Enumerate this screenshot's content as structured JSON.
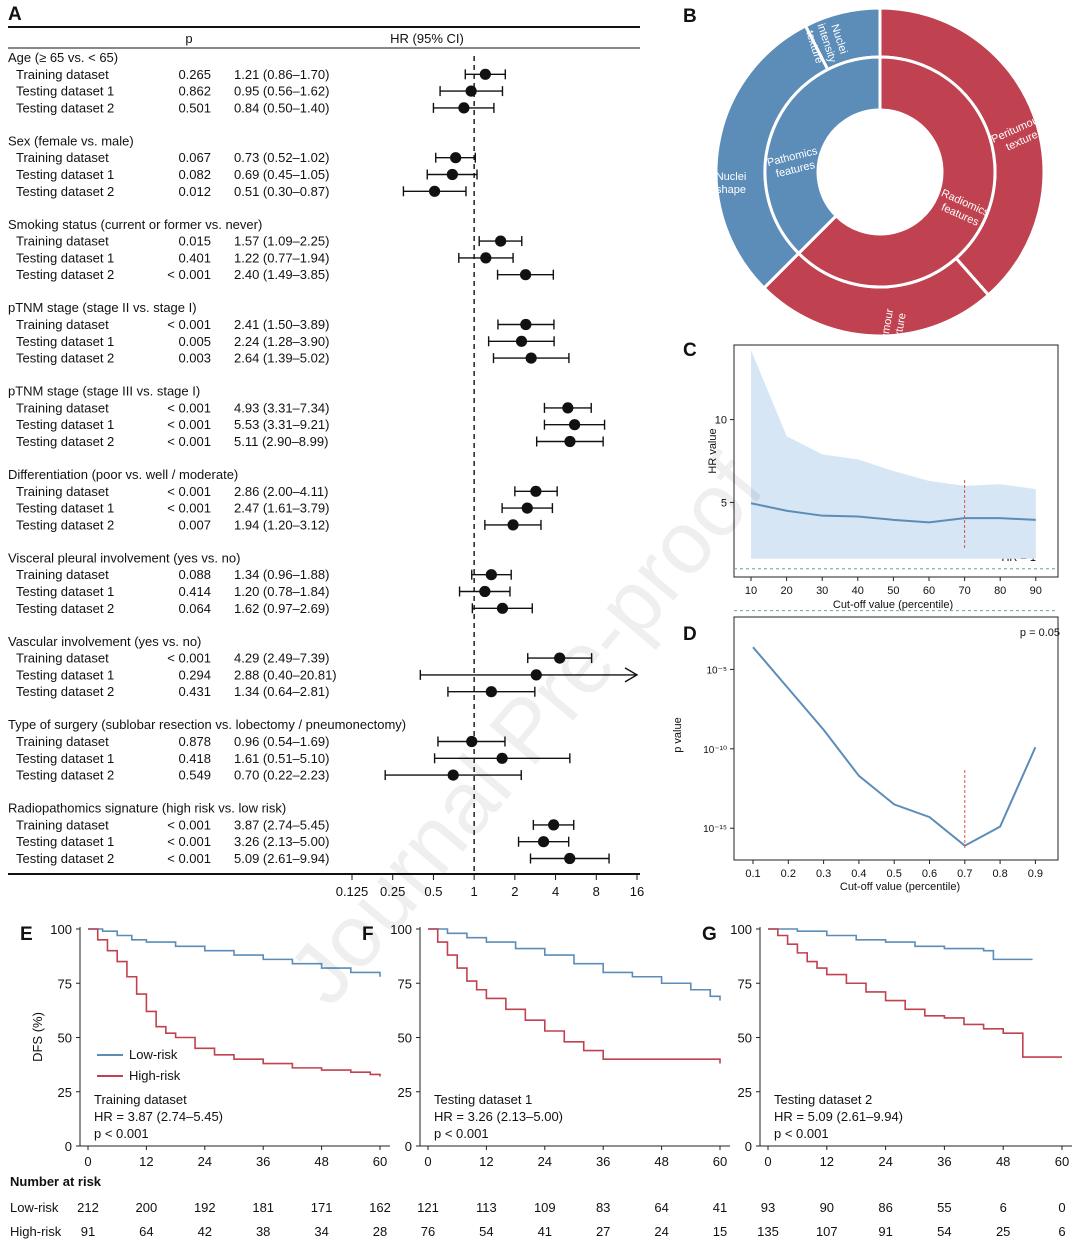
{
  "watermark": "Journal Pre-proof",
  "panel_labels": {
    "A": "A",
    "B": "B",
    "C": "C",
    "D": "D",
    "E": "E",
    "F": "F",
    "G": "G"
  },
  "colors": {
    "blue": "#5b8db8",
    "red": "#c0414f",
    "band": "#d6e6f5",
    "dashed_green": "#6aa88c",
    "dashed_red": "#d9534f"
  },
  "chart_data": [
    {
      "type": "forest",
      "panel": "A",
      "col_p": "p",
      "col_hr": "HR (95% CI)",
      "x_scale": "log2",
      "xlim": [
        0.125,
        16
      ],
      "xticks": [
        "0.125",
        "0.25",
        "0.5",
        "1",
        "2",
        "4",
        "8",
        "16"
      ],
      "reference_line": 1,
      "groups": [
        {
          "title": "Age (≥ 65 vs. < 65)",
          "rows": [
            {
              "label": "Training dataset",
              "p": "0.265",
              "hr_text": "1.21 (0.86–1.70)",
              "hr": 1.21,
              "lo": 0.86,
              "hi": 1.7
            },
            {
              "label": "Testing dataset 1",
              "p": "0.862",
              "hr_text": "0.95 (0.56–1.62)",
              "hr": 0.95,
              "lo": 0.56,
              "hi": 1.62
            },
            {
              "label": "Testing dataset 2",
              "p": "0.501",
              "hr_text": "0.84 (0.50–1.40)",
              "hr": 0.84,
              "lo": 0.5,
              "hi": 1.4
            }
          ]
        },
        {
          "title": "Sex (female vs. male)",
          "rows": [
            {
              "label": "Training dataset",
              "p": "0.067",
              "hr_text": "0.73 (0.52–1.02)",
              "hr": 0.73,
              "lo": 0.52,
              "hi": 1.02
            },
            {
              "label": "Testing dataset 1",
              "p": "0.082",
              "hr_text": "0.69 (0.45–1.05)",
              "hr": 0.69,
              "lo": 0.45,
              "hi": 1.05
            },
            {
              "label": "Testing dataset 2",
              "p": "0.012",
              "hr_text": "0.51 (0.30–0.87)",
              "hr": 0.51,
              "lo": 0.3,
              "hi": 0.87
            }
          ]
        },
        {
          "title": "Smoking status (current or former vs. never)",
          "rows": [
            {
              "label": "Training dataset",
              "p": "0.015",
              "hr_text": "1.57 (1.09–2.25)",
              "hr": 1.57,
              "lo": 1.09,
              "hi": 2.25
            },
            {
              "label": "Testing dataset 1",
              "p": "0.401",
              "hr_text": "1.22 (0.77–1.94)",
              "hr": 1.22,
              "lo": 0.77,
              "hi": 1.94
            },
            {
              "label": "Testing dataset 2",
              "p": "< 0.001",
              "hr_text": "2.40 (1.49–3.85)",
              "hr": 2.4,
              "lo": 1.49,
              "hi": 3.85
            }
          ]
        },
        {
          "title": "pTNM stage (stage II vs. stage I)",
          "rows": [
            {
              "label": "Training dataset",
              "p": "< 0.001",
              "hr_text": "2.41 (1.50–3.89)",
              "hr": 2.41,
              "lo": 1.5,
              "hi": 3.89
            },
            {
              "label": "Testing dataset 1",
              "p": "0.005",
              "hr_text": "2.24 (1.28–3.90)",
              "hr": 2.24,
              "lo": 1.28,
              "hi": 3.9
            },
            {
              "label": "Testing dataset 2",
              "p": "0.003",
              "hr_text": "2.64 (1.39–5.02)",
              "hr": 2.64,
              "lo": 1.39,
              "hi": 5.02
            }
          ]
        },
        {
          "title": "pTNM stage (stage III vs. stage I)",
          "rows": [
            {
              "label": "Training dataset",
              "p": "< 0.001",
              "hr_text": "4.93 (3.31–7.34)",
              "hr": 4.93,
              "lo": 3.31,
              "hi": 7.34
            },
            {
              "label": "Testing dataset 1",
              "p": "< 0.001",
              "hr_text": "5.53 (3.31–9.21)",
              "hr": 5.53,
              "lo": 3.31,
              "hi": 9.21
            },
            {
              "label": "Testing dataset 2",
              "p": "< 0.001",
              "hr_text": "5.11 (2.90–8.99)",
              "hr": 5.11,
              "lo": 2.9,
              "hi": 8.99
            }
          ]
        },
        {
          "title": "Differentiation (poor vs. well / moderate)",
          "rows": [
            {
              "label": "Training dataset",
              "p": "< 0.001",
              "hr_text": "2.86 (2.00–4.11)",
              "hr": 2.86,
              "lo": 2.0,
              "hi": 4.11
            },
            {
              "label": "Testing dataset 1",
              "p": "< 0.001",
              "hr_text": "2.47 (1.61–3.79)",
              "hr": 2.47,
              "lo": 1.61,
              "hi": 3.79
            },
            {
              "label": "Testing dataset 2",
              "p": "0.007",
              "hr_text": "1.94 (1.20–3.12)",
              "hr": 1.94,
              "lo": 1.2,
              "hi": 3.12
            }
          ]
        },
        {
          "title": "Visceral pleural involvement (yes vs. no)",
          "rows": [
            {
              "label": "Training dataset",
              "p": "0.088",
              "hr_text": "1.34 (0.96–1.88)",
              "hr": 1.34,
              "lo": 0.96,
              "hi": 1.88
            },
            {
              "label": "Testing dataset 1",
              "p": "0.414",
              "hr_text": "1.20 (0.78–1.84)",
              "hr": 1.2,
              "lo": 0.78,
              "hi": 1.84
            },
            {
              "label": "Testing dataset 2",
              "p": "0.064",
              "hr_text": "1.62 (0.97–2.69)",
              "hr": 1.62,
              "lo": 0.97,
              "hi": 2.69
            }
          ]
        },
        {
          "title": "Vascular involvement (yes vs. no)",
          "rows": [
            {
              "label": "Training dataset",
              "p": "< 0.001",
              "hr_text": "4.29 (2.49–7.39)",
              "hr": 4.29,
              "lo": 2.49,
              "hi": 7.39
            },
            {
              "label": "Testing dataset 1",
              "p": "0.294",
              "hr_text": "2.88 (0.40–20.81)",
              "hr": 2.88,
              "lo": 0.4,
              "hi": 20.81,
              "arrow": true
            },
            {
              "label": "Testing dataset 2",
              "p": "0.431",
              "hr_text": "1.34 (0.64–2.81)",
              "hr": 1.34,
              "lo": 0.64,
              "hi": 2.81
            }
          ]
        },
        {
          "title": "Type of surgery (sublobar resection vs. lobectomy / pneumonectomy)",
          "rows": [
            {
              "label": "Training dataset",
              "p": "0.878",
              "hr_text": "0.96 (0.54–1.69)",
              "hr": 0.96,
              "lo": 0.54,
              "hi": 1.69
            },
            {
              "label": "Testing dataset 1",
              "p": "0.418",
              "hr_text": "1.61 (0.51–5.10)",
              "hr": 1.61,
              "lo": 0.51,
              "hi": 5.1
            },
            {
              "label": "Testing dataset 2",
              "p": "0.549",
              "hr_text": "0.70 (0.22–2.23)",
              "hr": 0.7,
              "lo": 0.22,
              "hi": 2.23
            }
          ]
        },
        {
          "title": "Radiopathomics signature (high risk vs. low risk)",
          "rows": [
            {
              "label": "Training dataset",
              "p": "< 0.001",
              "hr_text": "3.87 (2.74–5.45)",
              "hr": 3.87,
              "lo": 2.74,
              "hi": 5.45
            },
            {
              "label": "Testing dataset 1",
              "p": "< 0.001",
              "hr_text": "3.26 (2.13–5.00)",
              "hr": 3.26,
              "lo": 2.13,
              "hi": 5.0
            },
            {
              "label": "Testing dataset 2",
              "p": "< 0.001",
              "hr_text": "5.09 (2.61–9.94)",
              "hr": 5.09,
              "lo": 2.61,
              "hi": 9.94
            }
          ]
        }
      ]
    },
    {
      "type": "pie",
      "panel": "B",
      "inner": [
        {
          "label": "Pathomics features",
          "value": 0.375,
          "color": "#5b8db8"
        },
        {
          "label": "Radiomics features",
          "value": 0.625,
          "color": "#c0414f"
        }
      ],
      "outer": [
        {
          "label": "Peritumour texture",
          "value": 0.385,
          "color": "#c0414f"
        },
        {
          "label": "Tumour texture",
          "value": 0.24,
          "color": "#c0414f"
        },
        {
          "label": "Nuclei shape",
          "value": 0.3,
          "color": "#5b8db8"
        },
        {
          "label": "Nuclei intensity texture",
          "value": 0.075,
          "color": "#5b8db8"
        }
      ]
    },
    {
      "type": "line",
      "panel": "C",
      "xlabel": "Cut-off value (percentile)",
      "ylabel": "HR value",
      "x": [
        10,
        20,
        30,
        40,
        50,
        60,
        70,
        80,
        90
      ],
      "xticks": [
        10,
        20,
        30,
        40,
        50,
        60,
        70,
        80,
        90
      ],
      "yticks": [
        5,
        10
      ],
      "ylim": [
        0.5,
        14.5
      ],
      "series": [
        {
          "values": [
            4.95,
            4.5,
            4.2,
            4.15,
            3.95,
            3.8,
            4.05,
            4.05,
            3.95
          ],
          "ci_low": [
            1.6,
            1.6,
            1.6,
            1.6,
            1.6,
            1.6,
            1.6,
            1.6,
            1.6
          ],
          "ci_high": [
            14.2,
            9.0,
            7.9,
            7.6,
            6.9,
            6.3,
            6.0,
            6.1,
            5.8
          ]
        }
      ],
      "reference_label": "HR = 1",
      "reference_value": 1,
      "marker_x": 70
    },
    {
      "type": "line",
      "panel": "D",
      "xlabel": "Cut-off value (percentile)",
      "ylabel": "p value",
      "y_scale": "log10",
      "x": [
        0.1,
        0.2,
        0.3,
        0.4,
        0.5,
        0.6,
        0.7,
        0.8,
        0.9
      ],
      "xticks": [
        "0.1",
        "0.2",
        "0.3",
        "0.4",
        "0.5",
        "0.6",
        "0.7",
        "0.8",
        "0.9"
      ],
      "yticks": [
        "10⁻⁵",
        "10⁻¹⁰",
        "10⁻¹⁵"
      ],
      "ylim": [
        -17,
        -1.7
      ],
      "series": [
        {
          "log10_values": [
            -3.6,
            -6.2,
            -8.8,
            -11.7,
            -13.5,
            -14.3,
            -16.1,
            -14.9,
            -9.9
          ]
        }
      ],
      "reference_label": "p = 0.05",
      "reference_log10": -1.3,
      "marker_x": 0.7
    },
    {
      "type": "km",
      "panel": "E",
      "title": "Training dataset",
      "hr_text": "HR = 3.87 (2.74–5.45)",
      "p_text": "p < 0.001",
      "ylabel": "DFS (%)",
      "yticks": [
        0,
        25,
        50,
        75,
        100
      ],
      "xticks": [
        0,
        12,
        24,
        36,
        48,
        60
      ],
      "legend": [
        "Low-risk",
        "High-risk"
      ],
      "low_risk": [
        [
          0,
          100
        ],
        [
          3,
          99
        ],
        [
          6,
          97
        ],
        [
          9,
          95
        ],
        [
          12,
          94
        ],
        [
          18,
          92
        ],
        [
          24,
          90
        ],
        [
          30,
          88
        ],
        [
          36,
          86
        ],
        [
          42,
          84
        ],
        [
          48,
          82
        ],
        [
          54,
          80
        ],
        [
          60,
          78
        ]
      ],
      "high_risk": [
        [
          0,
          100
        ],
        [
          2,
          95
        ],
        [
          4,
          90
        ],
        [
          6,
          85
        ],
        [
          8,
          78
        ],
        [
          10,
          70
        ],
        [
          12,
          62
        ],
        [
          14,
          55
        ],
        [
          16,
          52
        ],
        [
          18,
          50
        ],
        [
          22,
          45
        ],
        [
          26,
          42
        ],
        [
          30,
          40
        ],
        [
          36,
          38
        ],
        [
          42,
          36
        ],
        [
          48,
          35
        ],
        [
          54,
          34
        ],
        [
          58,
          33
        ],
        [
          60,
          32
        ]
      ]
    },
    {
      "type": "km",
      "panel": "F",
      "title": "Testing dataset 1",
      "hr_text": "HR = 3.26 (2.13–5.00)",
      "p_text": "p < 0.001",
      "yticks": [
        0,
        25,
        50,
        75,
        100
      ],
      "xticks": [
        0,
        12,
        24,
        36,
        48,
        60
      ],
      "low_risk": [
        [
          0,
          100
        ],
        [
          4,
          98
        ],
        [
          8,
          96
        ],
        [
          12,
          94
        ],
        [
          18,
          91
        ],
        [
          24,
          88
        ],
        [
          30,
          84
        ],
        [
          36,
          80
        ],
        [
          42,
          78
        ],
        [
          48,
          75
        ],
        [
          54,
          72
        ],
        [
          58,
          69
        ],
        [
          60,
          67
        ]
      ],
      "high_risk": [
        [
          0,
          100
        ],
        [
          2,
          94
        ],
        [
          4,
          88
        ],
        [
          6,
          82
        ],
        [
          8,
          76
        ],
        [
          10,
          72
        ],
        [
          12,
          68
        ],
        [
          16,
          63
        ],
        [
          20,
          58
        ],
        [
          24,
          53
        ],
        [
          28,
          48
        ],
        [
          32,
          44
        ],
        [
          36,
          40
        ],
        [
          48,
          40
        ],
        [
          58,
          40
        ],
        [
          60,
          38
        ]
      ]
    },
    {
      "type": "km",
      "panel": "G",
      "title": "Testing dataset 2",
      "hr_text": "HR = 5.09 (2.61–9.94)",
      "p_text": "p < 0.001",
      "yticks": [
        0,
        25,
        50,
        75,
        100
      ],
      "xticks": [
        0,
        12,
        24,
        36,
        48,
        60
      ],
      "low_risk": [
        [
          0,
          100
        ],
        [
          6,
          99
        ],
        [
          12,
          97
        ],
        [
          18,
          95
        ],
        [
          24,
          94
        ],
        [
          30,
          92
        ],
        [
          36,
          91
        ],
        [
          40,
          91
        ],
        [
          44,
          90
        ],
        [
          46,
          86
        ],
        [
          54,
          86
        ]
      ],
      "high_risk": [
        [
          0,
          100
        ],
        [
          2,
          97
        ],
        [
          4,
          93
        ],
        [
          6,
          89
        ],
        [
          8,
          85
        ],
        [
          10,
          82
        ],
        [
          12,
          79
        ],
        [
          16,
          75
        ],
        [
          20,
          71
        ],
        [
          24,
          67
        ],
        [
          28,
          63
        ],
        [
          32,
          60
        ],
        [
          36,
          59
        ],
        [
          40,
          56
        ],
        [
          44,
          54
        ],
        [
          48,
          52
        ],
        [
          52,
          41
        ],
        [
          60,
          41
        ]
      ]
    }
  ],
  "number_at_risk": {
    "title": "Number at risk",
    "rows": [
      {
        "label": "Low-risk",
        "E": [
          "212",
          "200",
          "192",
          "181",
          "171",
          "162"
        ],
        "F": [
          "121",
          "113",
          "109",
          "83",
          "64",
          "41"
        ],
        "G": [
          "93",
          "90",
          "86",
          "55",
          "6",
          "0"
        ]
      },
      {
        "label": "High-risk",
        "E": [
          "91",
          "64",
          "42",
          "38",
          "34",
          "28"
        ],
        "F": [
          "76",
          "54",
          "41",
          "27",
          "24",
          "15"
        ],
        "G": [
          "135",
          "107",
          "91",
          "54",
          "25",
          "6"
        ]
      }
    ]
  }
}
